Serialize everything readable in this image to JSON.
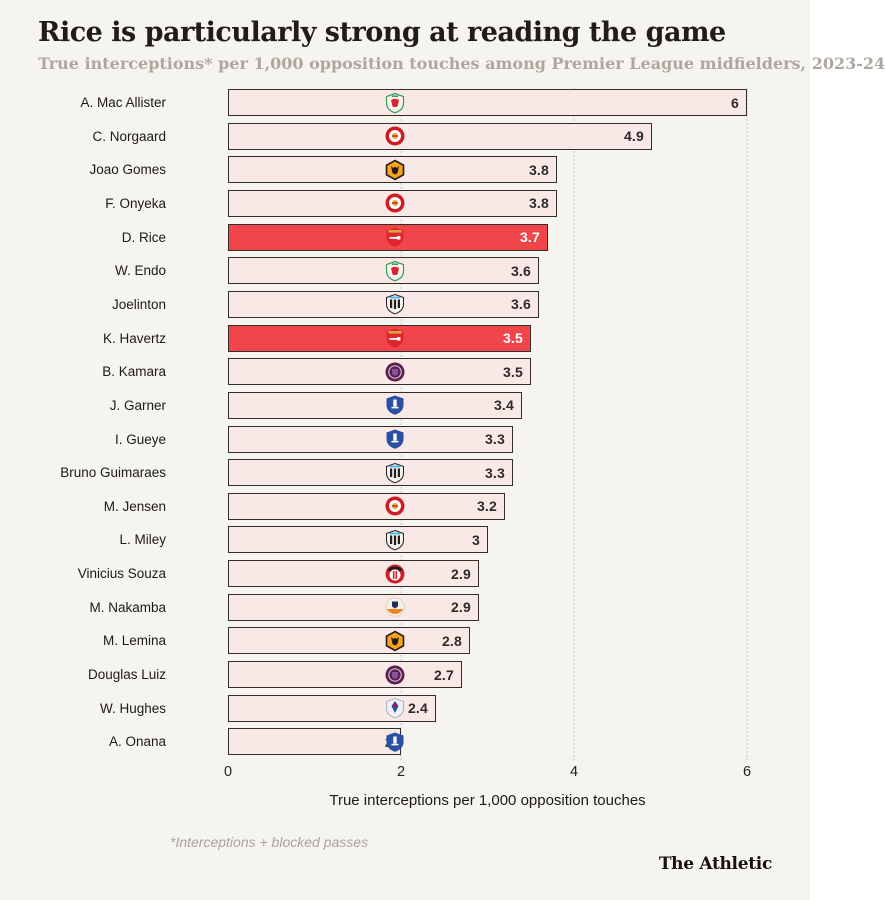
{
  "header": {
    "title": "Rice is particularly strong at reading the game",
    "subtitle": "True interceptions* per 1,000 opposition touches among Premier League midfielders, 2023-24"
  },
  "chart_data": {
    "type": "bar",
    "orientation": "horizontal",
    "title": "Rice is particularly strong at reading the game",
    "subtitle": "True interceptions* per 1,000 opposition touches among Premier League midfielders, 2023-24",
    "xlabel": "True interceptions per 1,000 opposition touches",
    "xlim": [
      0,
      6
    ],
    "xticks": [
      0,
      2,
      4,
      6
    ],
    "xtick_labels": [
      "0",
      "2",
      "4",
      "6"
    ],
    "grid": "vertical dotted gridlines at 2, 4, 6",
    "legend": "none",
    "players": [
      {
        "name": "A. Mac Allister",
        "team": "liverpool",
        "value": 6,
        "highlight": false
      },
      {
        "name": "C. Norgaard",
        "team": "brentford",
        "value": 4.9,
        "highlight": false
      },
      {
        "name": "Joao Gomes",
        "team": "wolves",
        "value": 3.8,
        "highlight": false
      },
      {
        "name": "F. Onyeka",
        "team": "brentford",
        "value": 3.8,
        "highlight": false
      },
      {
        "name": "D. Rice",
        "team": "arsenal",
        "value": 3.7,
        "highlight": true
      },
      {
        "name": "W. Endo",
        "team": "liverpool",
        "value": 3.6,
        "highlight": false
      },
      {
        "name": "Joelinton",
        "team": "newcastle",
        "value": 3.6,
        "highlight": false
      },
      {
        "name": "K. Havertz",
        "team": "arsenal",
        "value": 3.5,
        "highlight": true
      },
      {
        "name": "B. Kamara",
        "team": "aston-villa",
        "value": 3.5,
        "highlight": false
      },
      {
        "name": "J. Garner",
        "team": "everton",
        "value": 3.4,
        "highlight": false
      },
      {
        "name": "I. Gueye",
        "team": "everton",
        "value": 3.3,
        "highlight": false
      },
      {
        "name": "Bruno Guimaraes",
        "team": "newcastle",
        "value": 3.3,
        "highlight": false
      },
      {
        "name": "M. Jensen",
        "team": "brentford",
        "value": 3.2,
        "highlight": false
      },
      {
        "name": "L. Miley",
        "team": "newcastle",
        "value": 3,
        "highlight": false
      },
      {
        "name": "Vinicius Souza",
        "team": "sheffield-united",
        "value": 2.9,
        "highlight": false
      },
      {
        "name": "M. Nakamba",
        "team": "luton",
        "value": 2.9,
        "highlight": false
      },
      {
        "name": "M. Lemina",
        "team": "wolves",
        "value": 2.8,
        "highlight": false
      },
      {
        "name": "Douglas Luiz",
        "team": "aston-villa",
        "value": 2.7,
        "highlight": false
      },
      {
        "name": "W. Hughes",
        "team": "crystal-palace",
        "value": 2.4,
        "highlight": false
      },
      {
        "name": "A. Onana",
        "team": "everton",
        "value": 2,
        "highlight": false
      }
    ]
  },
  "footnote": "*Interceptions + blocked passes",
  "brand": "The Athletic",
  "colors": {
    "background": "#f6f4ef",
    "bar_fill": "#f8e9e7",
    "bar_highlight": "#f0464b",
    "bar_border": "#332e2a",
    "title_text": "#201c18",
    "subtitle_text": "#ada79f",
    "value_text": "#2e2a26",
    "value_text_highlight": "#ffffff",
    "gridline": "#e0dcd5",
    "footnote_text": "#a8a29a"
  },
  "badge_colors": {
    "liverpool": {
      "c1": "#f7f3ea",
      "c2": "#d8272e",
      "c3": "#3b9b5f"
    },
    "brentford": {
      "c1": "#cf1c24",
      "c2": "#ffffff",
      "c3": "#e3a72f"
    },
    "wolves": {
      "c1": "#f9a21d",
      "c2": "#211c1c",
      "c3": "#211c1c"
    },
    "arsenal": {
      "c1": "#e0262c",
      "c2": "#ffffff",
      "c3": "#d4a73f"
    },
    "newcastle": {
      "c1": "#f5f2ec",
      "c2": "#241f20",
      "c3": "#41b6e6"
    },
    "aston-villa": {
      "c1": "#5b2048",
      "c2": "#8952a0",
      "c3": "#cdb8dd"
    },
    "everton": {
      "c1": "#2b50a3",
      "c2": "#ffffff",
      "c3": "#2b50a3"
    },
    "sheffield-united": {
      "c1": "#c8232c",
      "c2": "#ffffff",
      "c3": "#1f1a18"
    },
    "luton": {
      "c1": "#f6f1e7",
      "c2": "#f08221",
      "c3": "#1d3160"
    },
    "crystal-palace": {
      "c1": "#eef0f6",
      "c2": "#2b4aa0",
      "c3": "#c8102e"
    }
  }
}
